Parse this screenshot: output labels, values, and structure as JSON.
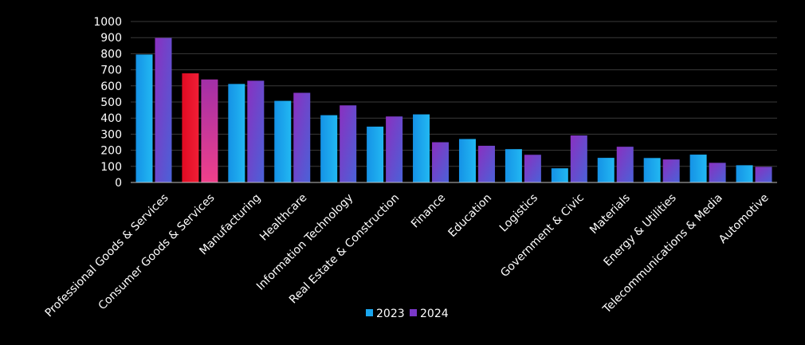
{
  "chart_data": {
    "type": "bar",
    "title": "",
    "xlabel": "",
    "ylabel": "",
    "ylim": [
      0,
      1000
    ],
    "yticks": [
      0,
      100,
      200,
      300,
      400,
      500,
      600,
      700,
      800,
      900,
      1000
    ],
    "grid": true,
    "legend_placement": "bottom-center",
    "categories": [
      "Professional Goods & Services",
      "Consumer Goods & Services",
      "Manufacturing",
      "Healthcare",
      "Information Technology",
      "Real Estate & Construction",
      "Finance",
      "Education",
      "Logistics",
      "Government & Civic",
      "Materials",
      "Energy & Utilities",
      "Telecommunications & Media",
      "Automotive"
    ],
    "series": [
      {
        "name": "2023",
        "values": [
          795,
          678,
          612,
          507,
          418,
          347,
          423,
          270,
          207,
          88,
          153,
          152,
          173,
          107
        ]
      },
      {
        "name": "2024",
        "values": [
          898,
          640,
          632,
          557,
          479,
          410,
          250,
          228,
          172,
          292,
          222,
          143,
          122,
          97
        ]
      }
    ],
    "highlight": {
      "category_index": 1,
      "colors": [
        "#e8102a",
        "#e8407a"
      ]
    },
    "colors": {
      "2023": "#1aa6ee",
      "2024": "#7a38c8"
    }
  }
}
